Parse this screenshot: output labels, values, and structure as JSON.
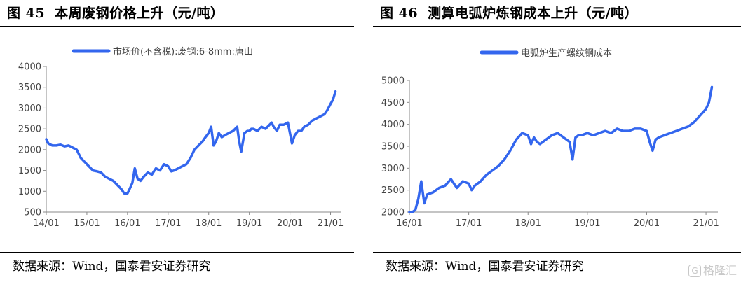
{
  "left": {
    "figure_number": "图 45",
    "title": "本周废钢价格上升（元/吨）",
    "source": "数据来源：Wind，国泰君安证券研究",
    "chart_data": {
      "type": "line",
      "title": "",
      "xlabel": "",
      "ylabel": "",
      "x_ticks": [
        "14/01",
        "15/01",
        "16/01",
        "17/01",
        "18/01",
        "19/01",
        "20/01",
        "21/01"
      ],
      "y_ticks": [
        500,
        1000,
        1500,
        2000,
        2500,
        3000,
        3500,
        4000
      ],
      "xlim": [
        2014.0,
        2021.25
      ],
      "ylim": [
        500,
        4000
      ],
      "grid": false,
      "legend_position": "top",
      "series": [
        {
          "name": "市场价(不含税):废钢:6-8mm:唐山",
          "color": "#3366ee",
          "x": [
            2014.0,
            2014.05,
            2014.15,
            2014.25,
            2014.35,
            2014.45,
            2014.55,
            2014.65,
            2014.75,
            2014.85,
            2014.95,
            2015.05,
            2015.15,
            2015.25,
            2015.35,
            2015.45,
            2015.55,
            2015.65,
            2015.75,
            2015.85,
            2015.92,
            2016.0,
            2016.05,
            2016.12,
            2016.18,
            2016.25,
            2016.32,
            2016.4,
            2016.5,
            2016.6,
            2016.7,
            2016.8,
            2016.9,
            2017.0,
            2017.08,
            2017.15,
            2017.25,
            2017.35,
            2017.45,
            2017.55,
            2017.65,
            2017.75,
            2017.85,
            2017.92,
            2018.0,
            2018.06,
            2018.12,
            2018.18,
            2018.25,
            2018.32,
            2018.4,
            2018.5,
            2018.6,
            2018.7,
            2018.75,
            2018.8,
            2018.88,
            2018.95,
            2019.0,
            2019.05,
            2019.1,
            2019.2,
            2019.3,
            2019.4,
            2019.5,
            2019.55,
            2019.6,
            2019.68,
            2019.75,
            2019.85,
            2019.95,
            2020.0,
            2020.05,
            2020.12,
            2020.2,
            2020.28,
            2020.35,
            2020.45,
            2020.55,
            2020.65,
            2020.75,
            2020.85,
            2020.92,
            2021.0,
            2021.06,
            2021.12
          ],
          "y": [
            2250,
            2150,
            2100,
            2100,
            2120,
            2080,
            2100,
            2050,
            2000,
            1800,
            1700,
            1600,
            1500,
            1480,
            1450,
            1350,
            1300,
            1250,
            1150,
            1050,
            950,
            950,
            1050,
            1200,
            1550,
            1300,
            1250,
            1350,
            1450,
            1400,
            1550,
            1500,
            1650,
            1600,
            1480,
            1500,
            1550,
            1600,
            1650,
            1800,
            2000,
            2100,
            2200,
            2300,
            2400,
            2550,
            2100,
            2200,
            2400,
            2300,
            2350,
            2400,
            2450,
            2550,
            2200,
            1950,
            2400,
            2450,
            2450,
            2500,
            2500,
            2450,
            2550,
            2500,
            2600,
            2650,
            2550,
            2450,
            2600,
            2600,
            2650,
            2400,
            2150,
            2350,
            2450,
            2450,
            2550,
            2600,
            2700,
            2750,
            2800,
            2850,
            2950,
            3100,
            3200,
            3400
          ]
        }
      ]
    }
  },
  "right": {
    "figure_number": "图 46",
    "title": "测算电弧炉炼钢成本上升（元/吨）",
    "source": "数据来源：Wind，国泰君安证券研究",
    "watermark": "格隆汇",
    "chart_data": {
      "type": "line",
      "title": "",
      "xlabel": "",
      "ylabel": "",
      "x_ticks": [
        "16/01",
        "17/01",
        "18/01",
        "19/01",
        "20/01",
        "21/01"
      ],
      "y_ticks": [
        2000,
        2500,
        3000,
        3500,
        4000,
        4500,
        5000
      ],
      "xlim": [
        2016.0,
        2021.2
      ],
      "ylim": [
        2000,
        5000
      ],
      "grid": false,
      "legend_position": "top",
      "series": [
        {
          "name": "电弧炉生产螺纹钢成本",
          "color": "#3366ee",
          "x": [
            2016.0,
            2016.05,
            2016.1,
            2016.15,
            2016.2,
            2016.25,
            2016.3,
            2016.4,
            2016.5,
            2016.6,
            2016.7,
            2016.8,
            2016.9,
            2017.0,
            2017.05,
            2017.1,
            2017.2,
            2017.3,
            2017.4,
            2017.5,
            2017.6,
            2017.7,
            2017.8,
            2017.9,
            2018.0,
            2018.05,
            2018.1,
            2018.15,
            2018.2,
            2018.3,
            2018.4,
            2018.5,
            2018.6,
            2018.7,
            2018.75,
            2018.8,
            2018.85,
            2018.9,
            2019.0,
            2019.1,
            2019.2,
            2019.3,
            2019.4,
            2019.5,
            2019.6,
            2019.7,
            2019.8,
            2019.9,
            2020.0,
            2020.05,
            2020.1,
            2020.15,
            2020.2,
            2020.3,
            2020.4,
            2020.5,
            2020.6,
            2020.7,
            2020.8,
            2020.9,
            2021.0,
            2021.05,
            2021.1
          ],
          "y": [
            2000,
            2000,
            2050,
            2300,
            2700,
            2200,
            2400,
            2450,
            2550,
            2600,
            2750,
            2550,
            2700,
            2650,
            2500,
            2600,
            2700,
            2850,
            2950,
            3050,
            3200,
            3400,
            3650,
            3800,
            3750,
            3550,
            3700,
            3600,
            3550,
            3650,
            3750,
            3800,
            3700,
            3600,
            3200,
            3700,
            3750,
            3750,
            3800,
            3750,
            3800,
            3850,
            3800,
            3900,
            3850,
            3850,
            3900,
            3900,
            3850,
            3600,
            3400,
            3650,
            3700,
            3750,
            3800,
            3850,
            3900,
            3950,
            4050,
            4200,
            4350,
            4500,
            4850
          ]
        }
      ]
    }
  }
}
